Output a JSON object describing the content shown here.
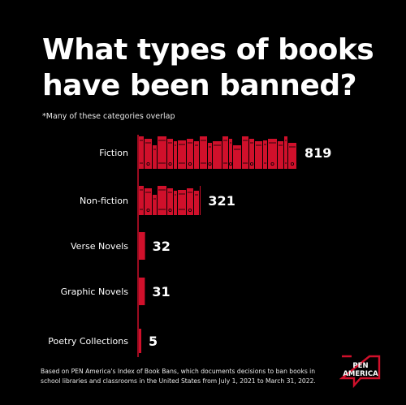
{
  "title": "What types of books have been banned?",
  "note": "*Many of these categories overlap",
  "footnote": "Based on PEN America's Index of Book Bans, which documents decisions to ban books in school libraries and classrooms in the United States from July 1, 2021 to March 31, 2022.",
  "logo": {
    "line1": "PEN",
    "line2": "AMERICA"
  },
  "colors": {
    "accent": "#d0102b",
    "background": "#000000",
    "text": "#ffffff",
    "spine_detail": "#000000"
  },
  "chart_data": {
    "type": "bar",
    "orientation": "horizontal",
    "categories": [
      "Fiction",
      "Non-fiction",
      "Verse Novels",
      "Graphic Novels",
      "Poetry Collections"
    ],
    "values": [
      819,
      321,
      32,
      31,
      5
    ],
    "title": "What types of books have been banned?",
    "subtitle": "*Many of these categories overlap",
    "xlabel": "",
    "ylabel": "",
    "legend": "none",
    "grid": false
  }
}
